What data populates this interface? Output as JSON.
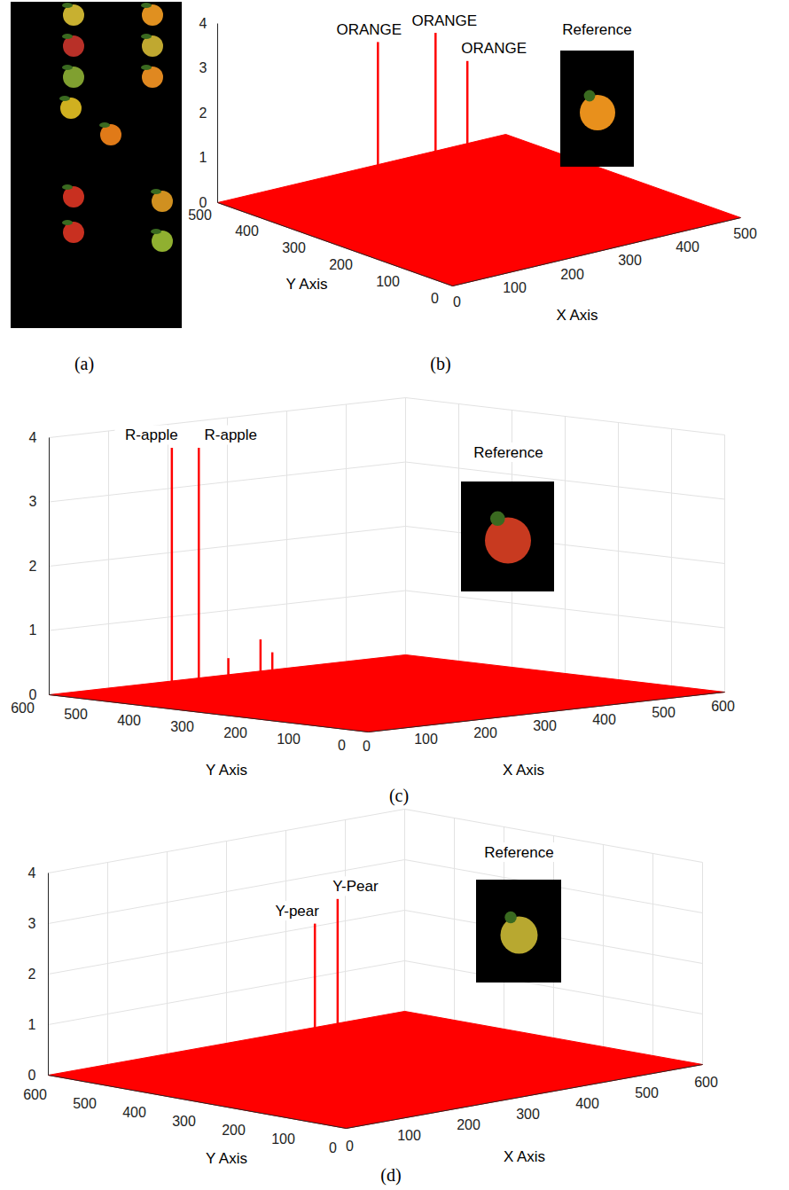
{
  "chart_data": [
    {
      "type": "image",
      "panel": "(a)"
    },
    {
      "type": "stem3",
      "panel": "(b)",
      "xlabel": "X Axis",
      "ylabel": "Y Axis",
      "xlim": [
        0,
        500
      ],
      "ylim": [
        0,
        500
      ],
      "zlim": [
        0,
        4
      ],
      "xticks": [
        0,
        100,
        200,
        300,
        400,
        500
      ],
      "yticks": [
        0,
        100,
        200,
        300,
        400,
        500
      ],
      "zticks": [
        0,
        1,
        2,
        3,
        4
      ],
      "x": [
        270,
        370,
        360
      ],
      "y": [
        490,
        490,
        410
      ],
      "values": [
        2.8,
        2.7,
        2.4
      ],
      "point_labels": [
        "ORANGE",
        "ORANGE",
        "ORANGE"
      ],
      "color": "#ff0000",
      "grid": false,
      "annotation": "Reference"
    },
    {
      "type": "stem3",
      "panel": "(c)",
      "xlabel": "X Axis",
      "ylabel": "Y Axis",
      "xlim": [
        0,
        600
      ],
      "ylim": [
        0,
        600
      ],
      "zlim": [
        0,
        4
      ],
      "xticks": [
        0,
        100,
        200,
        300,
        400,
        500,
        600
      ],
      "yticks": [
        0,
        100,
        200,
        300,
        400,
        500,
        600
      ],
      "zticks": [
        0,
        1,
        2,
        3,
        4
      ],
      "x": [
        125,
        148,
        187,
        234,
        244
      ],
      "y": [
        509,
        484,
        472,
        464,
        453
      ],
      "values": [
        3.8,
        3.8,
        0.5,
        0.75,
        0.55
      ],
      "point_labels": [
        "R-apple",
        "R-apple",
        null,
        null,
        null
      ],
      "color": "#ff0000",
      "grid": true,
      "annotation": "Reference"
    },
    {
      "type": "stem3",
      "panel": "(d)",
      "xlabel": "X Axis",
      "ylabel": "Y Axis",
      "xlim": [
        0,
        600
      ],
      "ylim": [
        0,
        600
      ],
      "zlim": [
        0,
        4
      ],
      "xticks": [
        0,
        100,
        200,
        300,
        400,
        500,
        600
      ],
      "yticks": [
        0,
        100,
        200,
        300,
        400,
        500,
        600
      ],
      "zticks": [
        0,
        1,
        2,
        3,
        4
      ],
      "x": [
        295,
        335
      ],
      "y": [
        416,
        418
      ],
      "values": [
        2.7,
        3.1
      ],
      "point_labels": [
        "Y-pear",
        "Y-Pear"
      ],
      "color": "#ff0000",
      "grid": true,
      "annotation": "Reference"
    }
  ]
}
